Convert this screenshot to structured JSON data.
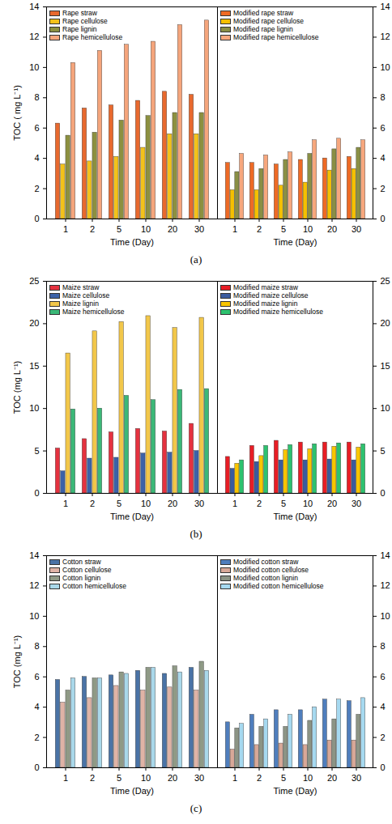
{
  "chart_data": [
    {
      "type": "bar",
      "caption": "(a)",
      "xlabel": "Time (Day)",
      "ylabel": "TOC ( mg L⁻¹)",
      "categories": [
        "1",
        "2",
        "5",
        "10",
        "20",
        "30"
      ],
      "ylim": [
        0,
        14
      ],
      "yticks": [
        0,
        2,
        4,
        6,
        8,
        10,
        12,
        14
      ],
      "legend": "upper left",
      "series": [
        {
          "name": "Rape straw",
          "color": "#e8692e",
          "values": [
            6.3,
            7.3,
            7.5,
            7.8,
            8.4,
            8.2
          ]
        },
        {
          "name": "Rape cellulose",
          "color": "#f3c21b",
          "values": [
            3.6,
            3.8,
            4.1,
            4.7,
            5.6,
            5.6
          ]
        },
        {
          "name": "Rape lignin",
          "color": "#8c9040",
          "values": [
            5.5,
            5.7,
            6.5,
            6.8,
            7.0,
            7.0
          ]
        },
        {
          "name": "Rape hemicellulose",
          "color": "#f5a57c",
          "values": [
            10.3,
            11.1,
            11.5,
            11.7,
            12.8,
            13.1
          ]
        }
      ]
    },
    {
      "type": "bar",
      "xlabel": "Time (Day)",
      "categories": [
        "1",
        "2",
        "5",
        "10",
        "20",
        "30"
      ],
      "ylim": [
        0,
        14
      ],
      "yticks": [
        0,
        2,
        4,
        6,
        8,
        10,
        12,
        14
      ],
      "legend": "upper left",
      "series": [
        {
          "name": "Modified rape straw",
          "color": "#ee6a25",
          "values": [
            3.7,
            3.7,
            3.6,
            3.9,
            4.0,
            4.1
          ]
        },
        {
          "name": "Modified rape cellulose",
          "color": "#f5c000",
          "values": [
            1.9,
            1.9,
            2.2,
            2.4,
            3.2,
            3.3
          ]
        },
        {
          "name": "Modified rape lignin",
          "color": "#8a8f45",
          "values": [
            3.1,
            3.3,
            3.9,
            4.3,
            4.6,
            4.7
          ]
        },
        {
          "name": "Modified rape hemicellulose",
          "color": "#f7a77d",
          "values": [
            4.3,
            4.2,
            4.4,
            5.2,
            5.3,
            5.2
          ]
        }
      ]
    },
    {
      "type": "bar",
      "caption": "(b)",
      "xlabel": "Time (Day)",
      "ylabel": "TOC (mg L⁻¹)",
      "categories": [
        "1",
        "2",
        "5",
        "10",
        "20",
        "30"
      ],
      "ylim": [
        0,
        25
      ],
      "yticks": [
        0,
        5,
        10,
        15,
        20,
        25
      ],
      "legend": "upper left",
      "series": [
        {
          "name": "Maize straw",
          "color": "#e5323f",
          "values": [
            5.3,
            6.4,
            7.2,
            7.6,
            7.3,
            8.2
          ]
        },
        {
          "name": "Maize cellulose",
          "color": "#3c62a8",
          "values": [
            2.6,
            4.1,
            4.2,
            4.7,
            4.8,
            5.0
          ]
        },
        {
          "name": "Maize lignin",
          "color": "#f2c74a",
          "values": [
            16.5,
            19.1,
            20.2,
            20.9,
            19.5,
            20.7
          ]
        },
        {
          "name": "Maize hemicellulose",
          "color": "#3bb878",
          "values": [
            9.9,
            10.0,
            11.5,
            11.0,
            12.2,
            12.3
          ]
        }
      ]
    },
    {
      "type": "bar",
      "xlabel": "Time (Day)",
      "categories": [
        "1",
        "2",
        "5",
        "10",
        "20",
        "30"
      ],
      "ylim": [
        0,
        25
      ],
      "yticks": [
        0,
        5,
        10,
        15,
        20,
        25
      ],
      "legend": "upper left",
      "series": [
        {
          "name": "Modified maize straw",
          "color": "#e81d25",
          "values": [
            4.3,
            5.6,
            6.2,
            6.0,
            6.0,
            6.0
          ]
        },
        {
          "name": "Modified maize cellulose",
          "color": "#3a5b9e",
          "values": [
            2.9,
            3.7,
            3.9,
            3.9,
            4.0,
            3.9
          ]
        },
        {
          "name": "Modified maize lignin",
          "color": "#f8c500",
          "values": [
            3.5,
            4.4,
            5.1,
            5.2,
            5.5,
            5.4
          ]
        },
        {
          "name": "Modified maize hemicellulose",
          "color": "#2dc26f",
          "values": [
            3.9,
            5.6,
            5.7,
            5.8,
            5.9,
            5.8
          ]
        }
      ]
    },
    {
      "type": "bar",
      "caption": "(c)",
      "xlabel": "Time (Day)",
      "ylabel": "TOC (mg L⁻¹)",
      "categories": [
        "1",
        "2",
        "5",
        "10",
        "20",
        "30"
      ],
      "ylim": [
        0,
        14
      ],
      "yticks": [
        0,
        2,
        4,
        6,
        8,
        10,
        12,
        14
      ],
      "legend": "upper left",
      "series": [
        {
          "name": "Cotton straw",
          "color": "#4a73a6",
          "values": [
            5.8,
            6.0,
            6.1,
            6.4,
            6.2,
            6.6
          ]
        },
        {
          "name": "Cotton cellulose",
          "color": "#dfb3a6",
          "values": [
            4.3,
            4.6,
            5.4,
            5.1,
            5.3,
            5.1
          ]
        },
        {
          "name": "Cotton lignin",
          "color": "#8f9a86",
          "values": [
            5.1,
            5.9,
            6.3,
            6.6,
            6.7,
            7.0
          ]
        },
        {
          "name": "Cotton hemicellulose",
          "color": "#a9d8ea",
          "values": [
            5.9,
            5.9,
            6.2,
            6.6,
            6.3,
            6.4
          ]
        }
      ]
    },
    {
      "type": "bar",
      "xlabel": "Time (Day)",
      "categories": [
        "1",
        "2",
        "5",
        "10",
        "20",
        "30"
      ],
      "ylim": [
        0,
        14
      ],
      "yticks": [
        0,
        2,
        4,
        6,
        8,
        10,
        12,
        14
      ],
      "legend": "upper left",
      "series": [
        {
          "name": "Modified cotton straw",
          "color": "#4f7ebd",
          "values": [
            3.0,
            3.5,
            3.8,
            3.8,
            4.5,
            4.4
          ]
        },
        {
          "name": "Modified cotton cellulose",
          "color": "#d8a898",
          "values": [
            1.2,
            1.5,
            1.6,
            1.5,
            1.8,
            1.8
          ]
        },
        {
          "name": "Modified cotton lignin",
          "color": "#8c9485",
          "values": [
            2.6,
            2.7,
            2.7,
            3.1,
            3.2,
            3.5
          ]
        },
        {
          "name": "Modified cotton hemicellulose",
          "color": "#a6d9f0",
          "values": [
            2.9,
            3.2,
            3.5,
            4.0,
            4.5,
            4.6
          ]
        }
      ]
    }
  ]
}
